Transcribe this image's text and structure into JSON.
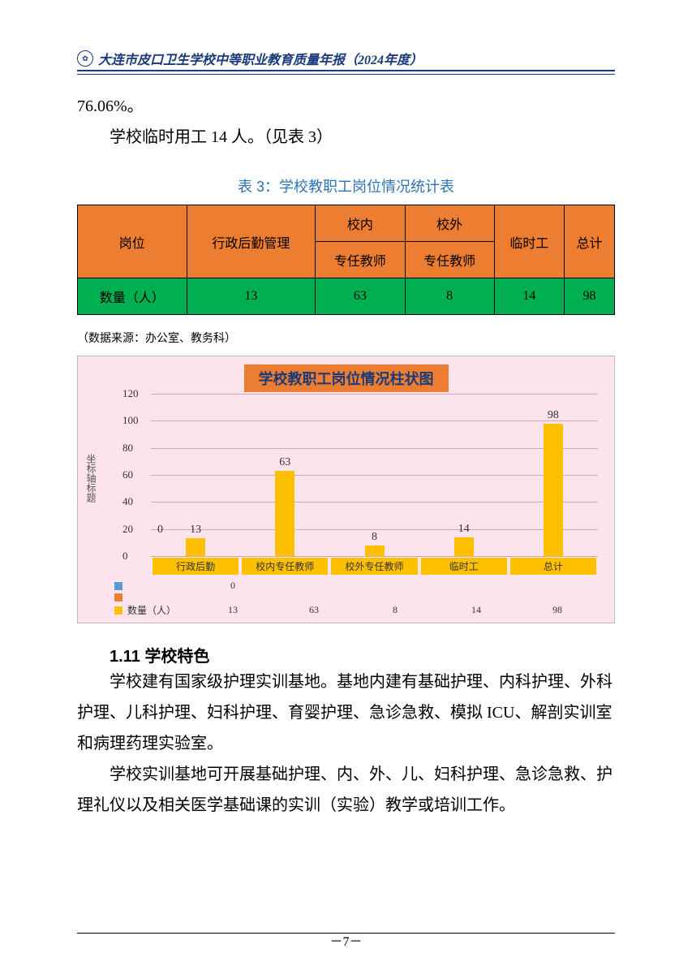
{
  "header": {
    "title": "大连市皮口卫生学校中等职业教育质量年报（2024年度）"
  },
  "intro": {
    "percent": "76.06%。",
    "line2": "学校临时用工 14 人。（见表 3）"
  },
  "table": {
    "title": "表 3：学校教职工岗位情况统计表",
    "headers": {
      "post": "岗位",
      "admin": "行政后勤管理",
      "in_school": "校内",
      "out_school": "校外",
      "fulltime": "专任教师",
      "temp": "临时工",
      "total": "总计",
      "count": "数量（人）"
    },
    "values": {
      "admin": "13",
      "in_teacher": "63",
      "out_teacher": "8",
      "temp": "14",
      "total": "98"
    }
  },
  "source": "（数据来源：办公室、教务科）",
  "chart": {
    "title": "学校教职工岗位情况柱状图",
    "ylabel": "坐标轴标题",
    "ylim": [
      0,
      120
    ],
    "ytick_step": 20,
    "categories": [
      "行政后勤",
      "校内专任教师",
      "校外专任教师",
      "临时工",
      "总计"
    ],
    "zero_label": "0",
    "legend_zero": "0",
    "values": [
      13,
      63,
      8,
      14,
      98
    ],
    "legend_series": "数量（人）",
    "series_color": "#ffc000",
    "blue_swatch": "#5b9bd5",
    "orange_swatch": "#ed7d31",
    "bg_color": "#fce4ec"
  },
  "section": {
    "heading": "1.11 学校特色",
    "p1": "学校建有国家级护理实训基地。基地内建有基础护理、内科护理、外科护理、儿科护理、妇科护理、育婴护理、急诊急救、模拟 ICU、解剖实训室和病理药理实验室。",
    "p2": "学校实训基地可开展基础护理、内、外、儿、妇科护理、急诊急救、护理礼仪以及相关医学基础课的实训（实验）教学或培训工作。"
  },
  "pagenum": "－7－"
}
